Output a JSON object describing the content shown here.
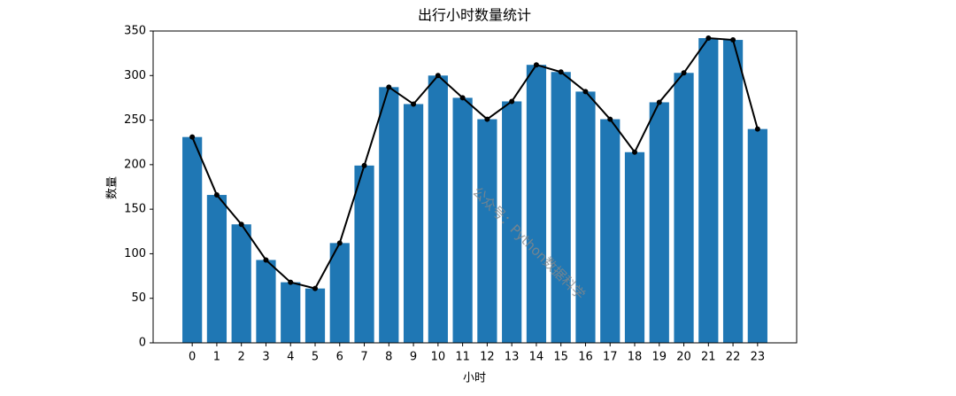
{
  "chart_data": {
    "type": "bar",
    "title": "出行小时数量统计",
    "x_label": "小时",
    "y_label": "数量",
    "categories": [
      "0",
      "1",
      "2",
      "3",
      "4",
      "5",
      "6",
      "7",
      "8",
      "9",
      "10",
      "11",
      "12",
      "13",
      "14",
      "15",
      "16",
      "17",
      "18",
      "19",
      "20",
      "21",
      "22",
      "23"
    ],
    "series": [
      {
        "type": "bar",
        "color": "#1f77b4",
        "values": [
          231,
          166,
          133,
          93,
          68,
          61,
          112,
          199,
          287,
          268,
          300,
          275,
          251,
          271,
          312,
          304,
          282,
          251,
          214,
          270,
          303,
          342,
          340,
          240
        ]
      },
      {
        "type": "line",
        "color": "#000000",
        "values": [
          231,
          166,
          133,
          93,
          68,
          61,
          112,
          199,
          287,
          268,
          300,
          275,
          251,
          271,
          312,
          304,
          282,
          251,
          214,
          270,
          303,
          342,
          340,
          240
        ]
      }
    ],
    "ylim": [
      0,
      350
    ],
    "yticks": [
      0,
      50,
      100,
      150,
      200,
      250,
      300,
      350
    ],
    "annotations": [
      {
        "text": "公众号：Python数据科学"
      }
    ]
  }
}
